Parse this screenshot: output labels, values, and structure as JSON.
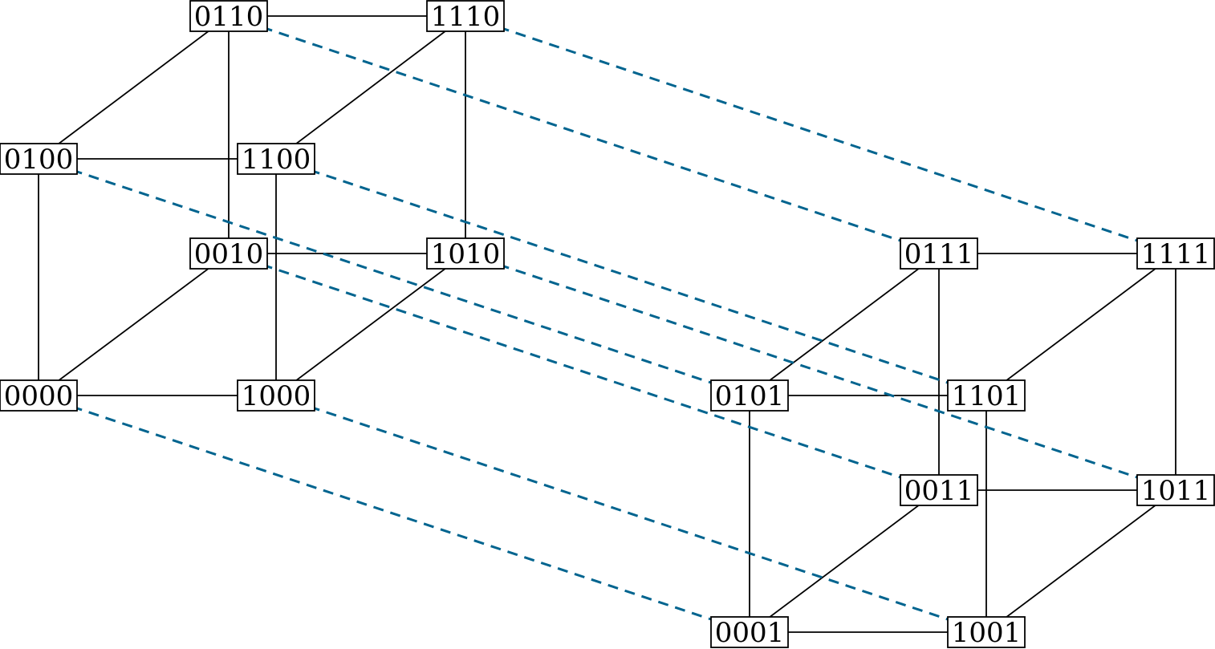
{
  "colors": {
    "solid_edge": "#000000",
    "dashed_edge": "#00648f",
    "node_border": "#000000"
  },
  "nodes": [
    "0000",
    "1000",
    "0100",
    "1100",
    "0010",
    "1010",
    "0110",
    "1110",
    "0001",
    "1001",
    "0101",
    "1101",
    "0011",
    "1011",
    "0111",
    "1111"
  ],
  "edges_solid": [
    [
      "0000",
      "1000"
    ],
    [
      "0000",
      "0100"
    ],
    [
      "0000",
      "0010"
    ],
    [
      "1000",
      "1100"
    ],
    [
      "1000",
      "1010"
    ],
    [
      "0100",
      "1100"
    ],
    [
      "0100",
      "0110"
    ],
    [
      "1100",
      "1110"
    ],
    [
      "0010",
      "1010"
    ],
    [
      "0010",
      "0110"
    ],
    [
      "1010",
      "1110"
    ],
    [
      "0110",
      "1110"
    ],
    [
      "0001",
      "1001"
    ],
    [
      "0001",
      "0101"
    ],
    [
      "0001",
      "0011"
    ],
    [
      "1001",
      "1101"
    ],
    [
      "1001",
      "1011"
    ],
    [
      "0101",
      "1101"
    ],
    [
      "0101",
      "0111"
    ],
    [
      "1101",
      "1111"
    ],
    [
      "0011",
      "1011"
    ],
    [
      "0011",
      "0111"
    ],
    [
      "1011",
      "1111"
    ],
    [
      "0111",
      "1111"
    ]
  ],
  "edges_dashed": [
    [
      "0000",
      "0001"
    ],
    [
      "1000",
      "1001"
    ],
    [
      "0100",
      "0101"
    ],
    [
      "1100",
      "1101"
    ],
    [
      "0010",
      "0011"
    ],
    [
      "1010",
      "1011"
    ],
    [
      "0110",
      "0111"
    ],
    [
      "1110",
      "1111"
    ]
  ]
}
